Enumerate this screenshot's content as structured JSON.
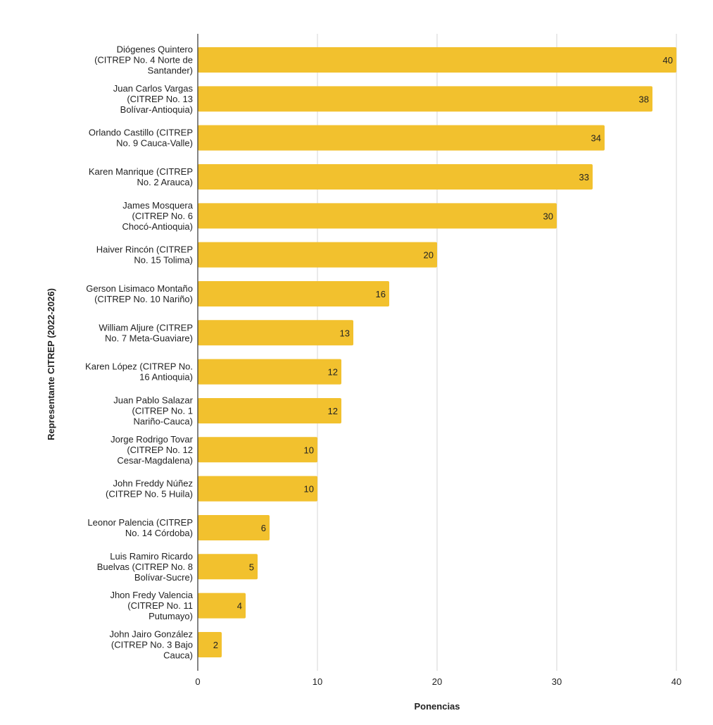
{
  "chart_data": {
    "type": "bar",
    "orientation": "horizontal",
    "title": "",
    "xlabel": "Ponencias",
    "ylabel": "Representante CITREP (2022-2026)",
    "xlim": [
      0,
      40
    ],
    "xticks": [
      0,
      10,
      20,
      30,
      40
    ],
    "grid": true,
    "bar_color": "#F2C12E",
    "categories": [
      [
        "Diógenes Quintero",
        "(CITREP No. 4 Norte de",
        "Santander)"
      ],
      [
        "Juan Carlos Vargas",
        "(CITREP No. 13",
        "Bolívar-Antioquia)"
      ],
      [
        "Orlando Castillo (CITREP",
        "No. 9 Cauca-Valle)"
      ],
      [
        "Karen Manrique (CITREP",
        "No. 2 Arauca)"
      ],
      [
        "James Mosquera",
        "(CITREP No. 6",
        "Chocó-Antioquia)"
      ],
      [
        "Haiver Rincón (CITREP",
        "No. 15 Tolima)"
      ],
      [
        "Gerson Lisimaco Montaño",
        "(CITREP No. 10 Nariño)"
      ],
      [
        "William Aljure (CITREP",
        "No. 7 Meta-Guaviare)"
      ],
      [
        "Karen López (CITREP No.",
        "16 Antioquia)"
      ],
      [
        "Juan Pablo Salazar",
        "(CITREP No. 1",
        "Nariño-Cauca)"
      ],
      [
        "Jorge Rodrigo Tovar",
        "(CITREP No. 12",
        "Cesar-Magdalena)"
      ],
      [
        "John Freddy Núñez",
        "(CITREP No. 5 Huila)"
      ],
      [
        "Leonor Palencia (CITREP",
        "No. 14 Córdoba)"
      ],
      [
        "Luis Ramiro Ricardo",
        "Buelvas (CITREP No. 8",
        "Bolívar-Sucre)"
      ],
      [
        "Jhon Fredy Valencia",
        "(CITREP No. 11",
        "Putumayo)"
      ],
      [
        "John Jairo González",
        "(CITREP No. 3 Bajo",
        "Cauca)"
      ]
    ],
    "values": [
      40,
      38,
      34,
      33,
      30,
      20,
      16,
      13,
      12,
      12,
      10,
      10,
      6,
      5,
      4,
      2
    ]
  }
}
